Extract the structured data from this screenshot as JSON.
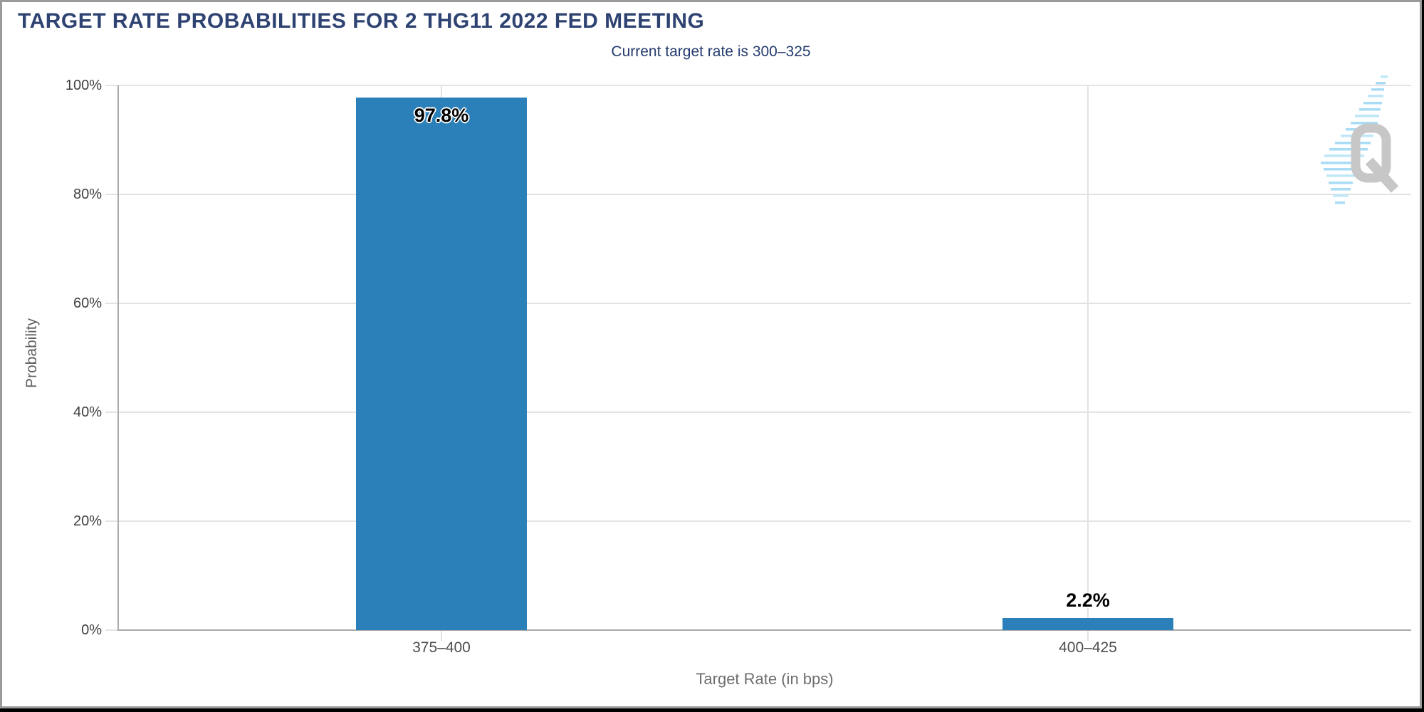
{
  "header": {
    "title": "TARGET RATE PROBABILITIES FOR 2 THG11 2022 FED MEETING",
    "subtitle": "Current target rate is 300–325"
  },
  "chart_data": {
    "type": "bar",
    "title": "TARGET RATE PROBABILITIES FOR 2 THG11 2022 FED MEETING",
    "subtitle": "Current target rate is 300–325",
    "categories": [
      "375–400",
      "400–425"
    ],
    "values": [
      97.8,
      2.2
    ],
    "value_labels": [
      "97.8%",
      "2.2%"
    ],
    "xlabel": "Target Rate (in bps)",
    "ylabel": "Probability",
    "ylim": [
      0,
      100
    ],
    "yticks": [
      0,
      20,
      40,
      60,
      80,
      100
    ],
    "ytick_labels": [
      "0%",
      "20%",
      "40%",
      "60%",
      "80%",
      "100%"
    ],
    "grid": true,
    "legend": "none",
    "bar_color": "#2b80b9"
  },
  "colors": {
    "title_navy": "#2e4372",
    "bar_blue": "#2b80b9",
    "gridline": "#e3e3e3",
    "axis_gray": "#aaaaaa",
    "tick_text": "#404040",
    "axis_title_text": "#6e6e6e",
    "logo_gray": "#c7c7c7",
    "logo_blue": "#a8dcf5"
  },
  "logo": {
    "letter": "Q",
    "name": "q-watermark"
  }
}
